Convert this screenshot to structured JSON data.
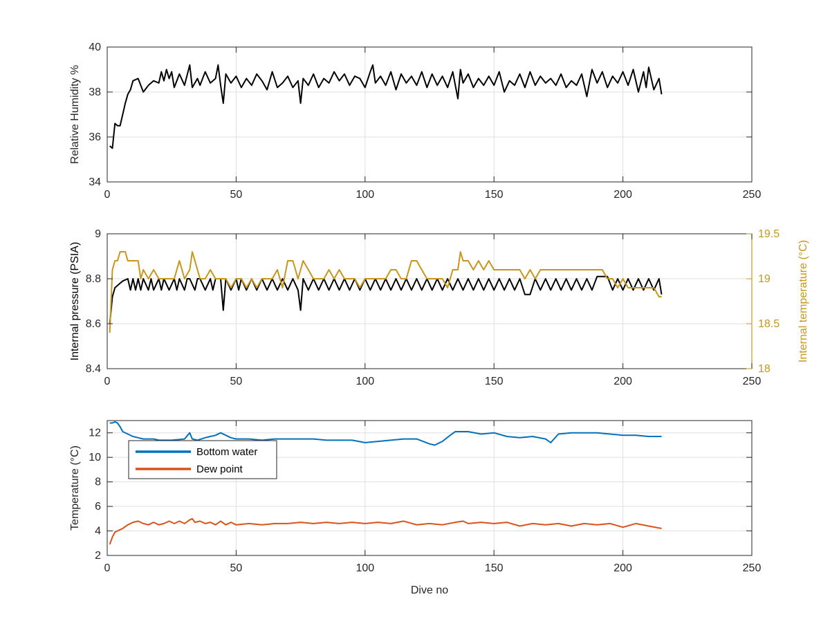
{
  "chart_data": [
    {
      "type": "line",
      "title": "",
      "xlabel": "",
      "ylabel": "Relative Humidity %",
      "xlim": [
        0,
        250
      ],
      "ylim": [
        34,
        40
      ],
      "xticks": [
        "0",
        "50",
        "100",
        "150",
        "200",
        "250"
      ],
      "yticks": [
        "34",
        "36",
        "38",
        "40"
      ],
      "grid": true,
      "series": [
        {
          "name": "",
          "color": "#000000",
          "x": [
            1,
            2,
            3,
            4,
            5,
            6,
            7,
            8,
            9,
            10,
            12,
            14,
            16,
            18,
            20,
            21,
            22,
            23,
            24,
            25,
            26,
            28,
            30,
            32,
            33,
            35,
            36,
            38,
            40,
            42,
            43,
            44,
            45,
            46,
            48,
            50,
            52,
            54,
            56,
            58,
            60,
            62,
            64,
            66,
            68,
            70,
            72,
            74,
            75,
            76,
            78,
            80,
            82,
            84,
            86,
            88,
            90,
            92,
            94,
            96,
            98,
            100,
            102,
            103,
            104,
            106,
            108,
            110,
            112,
            114,
            116,
            118,
            120,
            122,
            124,
            126,
            128,
            130,
            132,
            134,
            136,
            137,
            138,
            140,
            142,
            144,
            146,
            148,
            150,
            152,
            154,
            156,
            158,
            160,
            162,
            164,
            166,
            168,
            170,
            172,
            174,
            176,
            178,
            180,
            182,
            184,
            186,
            188,
            190,
            192,
            194,
            196,
            198,
            200,
            202,
            204,
            206,
            208,
            209,
            210,
            212,
            214,
            215
          ],
          "y": [
            35.6,
            35.5,
            36.6,
            36.5,
            36.5,
            37.0,
            37.5,
            37.9,
            38.1,
            38.5,
            38.6,
            38.0,
            38.3,
            38.5,
            38.4,
            38.9,
            38.5,
            39.0,
            38.6,
            38.9,
            38.2,
            38.8,
            38.3,
            39.2,
            38.2,
            38.6,
            38.3,
            38.9,
            38.4,
            38.6,
            39.2,
            38.3,
            37.5,
            38.8,
            38.4,
            38.7,
            38.2,
            38.6,
            38.3,
            38.8,
            38.5,
            38.1,
            38.9,
            38.2,
            38.4,
            38.7,
            38.2,
            38.5,
            37.5,
            38.6,
            38.3,
            38.8,
            38.2,
            38.6,
            38.4,
            38.9,
            38.5,
            38.8,
            38.3,
            38.7,
            38.6,
            38.2,
            38.9,
            39.2,
            38.4,
            38.7,
            38.3,
            38.9,
            38.1,
            38.8,
            38.4,
            38.7,
            38.3,
            38.9,
            38.2,
            38.8,
            38.3,
            38.7,
            38.2,
            38.9,
            37.7,
            39.0,
            38.4,
            38.8,
            38.2,
            38.6,
            38.3,
            38.7,
            38.3,
            38.9,
            38.0,
            38.5,
            38.3,
            38.8,
            38.2,
            38.9,
            38.3,
            38.7,
            38.4,
            38.6,
            38.3,
            38.8,
            38.2,
            38.5,
            38.3,
            38.8,
            37.8,
            39.0,
            38.4,
            38.9,
            38.2,
            38.7,
            38.4,
            38.9,
            38.3,
            39.0,
            38.0,
            38.9,
            38.2,
            39.1,
            38.1,
            38.6,
            37.9
          ]
        }
      ]
    },
    {
      "type": "line",
      "title": "",
      "xlabel": "",
      "ylabel": "Internal pressure (PSIA)",
      "ylabel_right": "Internal temperature (°C)",
      "xlim": [
        0,
        250
      ],
      "ylim": [
        8.4,
        9
      ],
      "ylim_right": [
        18,
        19.5
      ],
      "xticks": [
        "0",
        "50",
        "100",
        "150",
        "200",
        "250"
      ],
      "yticks": [
        "8.4",
        "8.6",
        "8.8",
        "9"
      ],
      "yticks_right": [
        "18",
        "18.5",
        "19",
        "19.5"
      ],
      "grid": true,
      "series": [
        {
          "name": "",
          "axis": "left",
          "color": "#000000",
          "x": [
            1,
            2,
            3,
            4,
            5,
            6,
            8,
            9,
            10,
            11,
            12,
            13,
            14,
            16,
            17,
            18,
            20,
            21,
            22,
            24,
            26,
            27,
            28,
            30,
            31,
            32,
            34,
            35,
            36,
            38,
            40,
            41,
            42,
            44,
            45,
            46,
            48,
            50,
            51,
            52,
            54,
            56,
            58,
            60,
            62,
            64,
            66,
            68,
            70,
            72,
            74,
            75,
            76,
            78,
            80,
            82,
            84,
            86,
            88,
            90,
            92,
            94,
            96,
            98,
            100,
            102,
            104,
            106,
            108,
            110,
            112,
            114,
            116,
            118,
            120,
            122,
            124,
            126,
            128,
            130,
            132,
            134,
            136,
            138,
            140,
            142,
            144,
            146,
            148,
            150,
            152,
            154,
            156,
            158,
            160,
            162,
            164,
            166,
            168,
            170,
            172,
            174,
            176,
            178,
            180,
            182,
            184,
            186,
            188,
            190,
            192,
            194,
            196,
            198,
            200,
            202,
            204,
            206,
            208,
            210,
            212,
            214,
            215
          ],
          "y": [
            8.6,
            8.72,
            8.76,
            8.77,
            8.78,
            8.79,
            8.8,
            8.75,
            8.8,
            8.75,
            8.8,
            8.75,
            8.8,
            8.75,
            8.8,
            8.75,
            8.8,
            8.75,
            8.8,
            8.75,
            8.8,
            8.75,
            8.8,
            8.75,
            8.8,
            8.8,
            8.75,
            8.8,
            8.8,
            8.75,
            8.8,
            8.75,
            8.8,
            8.8,
            8.66,
            8.8,
            8.75,
            8.8,
            8.75,
            8.8,
            8.75,
            8.8,
            8.75,
            8.8,
            8.75,
            8.8,
            8.75,
            8.8,
            8.75,
            8.8,
            8.75,
            8.66,
            8.8,
            8.75,
            8.8,
            8.75,
            8.8,
            8.75,
            8.8,
            8.75,
            8.8,
            8.75,
            8.8,
            8.75,
            8.8,
            8.75,
            8.8,
            8.75,
            8.8,
            8.75,
            8.8,
            8.75,
            8.8,
            8.75,
            8.8,
            8.75,
            8.8,
            8.75,
            8.8,
            8.75,
            8.8,
            8.75,
            8.8,
            8.75,
            8.8,
            8.75,
            8.8,
            8.75,
            8.8,
            8.75,
            8.8,
            8.75,
            8.8,
            8.75,
            8.8,
            8.73,
            8.73,
            8.8,
            8.75,
            8.8,
            8.75,
            8.8,
            8.75,
            8.8,
            8.75,
            8.8,
            8.75,
            8.8,
            8.75,
            8.81,
            8.81,
            8.81,
            8.75,
            8.8,
            8.75,
            8.8,
            8.75,
            8.8,
            8.75,
            8.8,
            8.75,
            8.8,
            8.73
          ]
        },
        {
          "name": "",
          "axis": "right",
          "color": "#c7961a",
          "x": [
            1,
            2,
            3,
            4,
            5,
            6,
            7,
            8,
            9,
            10,
            11,
            12,
            13,
            14,
            16,
            18,
            20,
            22,
            24,
            26,
            28,
            30,
            32,
            33,
            34,
            36,
            38,
            40,
            42,
            44,
            46,
            48,
            50,
            52,
            54,
            56,
            58,
            60,
            62,
            64,
            66,
            68,
            70,
            72,
            74,
            76,
            78,
            80,
            82,
            84,
            86,
            88,
            90,
            92,
            94,
            96,
            98,
            100,
            102,
            104,
            106,
            108,
            110,
            112,
            114,
            116,
            118,
            120,
            122,
            124,
            126,
            128,
            130,
            132,
            134,
            136,
            137,
            138,
            140,
            142,
            144,
            146,
            148,
            150,
            152,
            154,
            156,
            158,
            160,
            162,
            164,
            166,
            168,
            170,
            172,
            174,
            176,
            178,
            180,
            182,
            184,
            186,
            188,
            190,
            192,
            194,
            196,
            198,
            200,
            202,
            204,
            206,
            208,
            210,
            212,
            214,
            215
          ],
          "y": [
            18.4,
            19.1,
            19.2,
            19.2,
            19.3,
            19.3,
            19.3,
            19.2,
            19.2,
            19.2,
            19.2,
            19.2,
            19.0,
            19.1,
            19.0,
            19.1,
            19.0,
            19.0,
            19.0,
            19.0,
            19.2,
            19.0,
            19.1,
            19.3,
            19.2,
            19.0,
            19.0,
            19.1,
            19.0,
            19.0,
            19.0,
            18.9,
            19.0,
            19.0,
            18.9,
            19.0,
            18.9,
            19.0,
            19.0,
            19.0,
            19.1,
            18.9,
            19.2,
            19.2,
            19.0,
            19.2,
            19.1,
            19.0,
            19.0,
            19.0,
            19.1,
            19.0,
            19.1,
            19.0,
            19.0,
            19.0,
            18.9,
            19.0,
            19.0,
            19.0,
            19.0,
            19.0,
            19.1,
            19.1,
            19.0,
            19.0,
            19.2,
            19.2,
            19.1,
            19.0,
            19.0,
            19.0,
            19.0,
            18.9,
            19.1,
            19.1,
            19.3,
            19.2,
            19.2,
            19.1,
            19.2,
            19.1,
            19.2,
            19.1,
            19.1,
            19.1,
            19.1,
            19.1,
            19.1,
            19.0,
            19.1,
            19.0,
            19.1,
            19.1,
            19.1,
            19.1,
            19.1,
            19.1,
            19.1,
            19.1,
            19.1,
            19.1,
            19.1,
            19.1,
            19.1,
            19.0,
            19.0,
            18.9,
            19.0,
            18.9,
            18.9,
            18.9,
            18.9,
            18.9,
            18.9,
            18.8,
            18.8
          ]
        }
      ]
    },
    {
      "type": "line",
      "title": "",
      "xlabel": "Dive no",
      "ylabel": "Temperature (°C)",
      "xlim": [
        0,
        250
      ],
      "ylim": [
        2,
        13
      ],
      "xticks": [
        "0",
        "50",
        "100",
        "150",
        "200",
        "250"
      ],
      "yticks": [
        "2",
        "4",
        "6",
        "8",
        "10",
        "12"
      ],
      "grid": true,
      "legend": "top-left",
      "series": [
        {
          "name": "Bottom water",
          "color": "#0072bd",
          "x": [
            1,
            2,
            3,
            4,
            5,
            6,
            8,
            10,
            12,
            14,
            16,
            18,
            20,
            22,
            25,
            30,
            32,
            33,
            35,
            38,
            40,
            42,
            44,
            46,
            48,
            50,
            55,
            60,
            65,
            70,
            75,
            80,
            85,
            90,
            95,
            100,
            105,
            110,
            115,
            120,
            125,
            127,
            130,
            133,
            135,
            137,
            140,
            145,
            150,
            155,
            160,
            165,
            170,
            172,
            175,
            180,
            185,
            190,
            195,
            200,
            205,
            210,
            215
          ],
          "y": [
            12.8,
            12.8,
            12.9,
            12.8,
            12.5,
            12.1,
            11.9,
            11.7,
            11.6,
            11.5,
            11.5,
            11.5,
            11.4,
            11.4,
            11.4,
            11.5,
            12.0,
            11.5,
            11.4,
            11.6,
            11.7,
            11.8,
            12.0,
            11.8,
            11.6,
            11.5,
            11.5,
            11.4,
            11.5,
            11.5,
            11.5,
            11.5,
            11.4,
            11.4,
            11.4,
            11.2,
            11.3,
            11.4,
            11.5,
            11.5,
            11.1,
            11.0,
            11.3,
            11.8,
            12.1,
            12.1,
            12.1,
            11.9,
            12.0,
            11.7,
            11.6,
            11.7,
            11.5,
            11.2,
            11.9,
            12.0,
            12.0,
            12.0,
            11.9,
            11.8,
            11.8,
            11.7,
            11.7
          ]
        },
        {
          "name": "Dew point",
          "color": "#d95319",
          "x": [
            1,
            2,
            3,
            4,
            5,
            6,
            8,
            10,
            12,
            14,
            16,
            18,
            20,
            22,
            24,
            26,
            28,
            30,
            32,
            33,
            34,
            36,
            38,
            40,
            42,
            44,
            46,
            48,
            50,
            55,
            60,
            65,
            70,
            75,
            80,
            85,
            90,
            95,
            100,
            105,
            110,
            115,
            120,
            125,
            130,
            135,
            138,
            140,
            145,
            150,
            155,
            160,
            165,
            170,
            175,
            180,
            185,
            190,
            195,
            200,
            205,
            210,
            215
          ],
          "y": [
            2.9,
            3.5,
            3.9,
            4.0,
            4.1,
            4.2,
            4.5,
            4.7,
            4.8,
            4.6,
            4.5,
            4.7,
            4.5,
            4.6,
            4.8,
            4.6,
            4.8,
            4.6,
            4.9,
            5.0,
            4.7,
            4.8,
            4.6,
            4.7,
            4.5,
            4.8,
            4.5,
            4.7,
            4.5,
            4.6,
            4.5,
            4.6,
            4.6,
            4.7,
            4.6,
            4.7,
            4.6,
            4.7,
            4.6,
            4.7,
            4.6,
            4.8,
            4.5,
            4.6,
            4.5,
            4.7,
            4.8,
            4.6,
            4.7,
            4.6,
            4.7,
            4.4,
            4.6,
            4.5,
            4.6,
            4.4,
            4.6,
            4.5,
            4.6,
            4.3,
            4.6,
            4.4,
            4.2
          ]
        }
      ]
    }
  ]
}
